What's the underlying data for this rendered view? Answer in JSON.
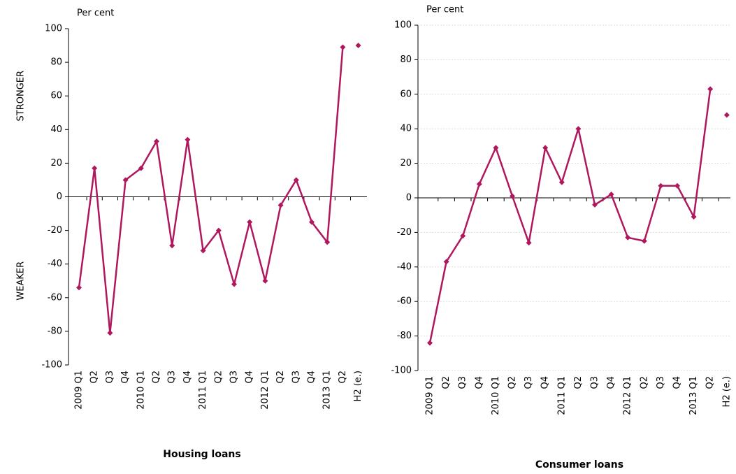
{
  "chart_data": [
    {
      "type": "line",
      "title": "Housing loans",
      "unit": "Per cent",
      "annotations": [
        "STRONGER",
        "WEAKER"
      ],
      "categories": [
        "2009 Q1",
        "Q2",
        "Q3",
        "Q4",
        "2010 Q1",
        "Q2",
        "Q3",
        "Q4",
        "2011 Q1",
        "Q2",
        "Q3",
        "Q4",
        "2012 Q1",
        "Q2",
        "Q3",
        "Q4",
        "2013 Q1",
        "Q2",
        "H2 (e.)"
      ],
      "series": [
        {
          "color": "#b0185e",
          "values": [
            -54,
            17,
            -81,
            10,
            17,
            33,
            -29,
            34,
            -32,
            -20,
            -52,
            -15,
            -50,
            -5,
            10,
            -15,
            -27,
            89,
            null
          ]
        },
        {
          "color": "#b0185e",
          "line": false,
          "values": [
            null,
            null,
            null,
            null,
            null,
            null,
            null,
            null,
            null,
            null,
            null,
            null,
            null,
            null,
            null,
            null,
            null,
            null,
            90
          ]
        }
      ],
      "ylim": [
        -100,
        100
      ],
      "yticks": [
        -100,
        -80,
        -60,
        -40,
        -20,
        0,
        20,
        40,
        60,
        80,
        100
      ],
      "grid": false
    },
    {
      "type": "line",
      "title": "Consumer loans",
      "unit": "Per cent",
      "categories": [
        "2009 Q1",
        "Q2",
        "Q3",
        "Q4",
        "2010 Q1",
        "Q2",
        "Q3",
        "Q4",
        "2011 Q1",
        "Q2",
        "Q3",
        "Q4",
        "2012 Q1",
        "Q2",
        "Q3",
        "Q4",
        "2013 Q1",
        "Q2",
        "H2 (e.)"
      ],
      "series": [
        {
          "color": "#b0185e",
          "values": [
            -84,
            -37,
            -22,
            8,
            29,
            1,
            -26,
            29,
            9,
            40,
            -4,
            2,
            -23,
            -25,
            7,
            7,
            -11,
            63,
            null
          ]
        },
        {
          "color": "#b0185e",
          "line": false,
          "values": [
            null,
            null,
            null,
            null,
            null,
            null,
            null,
            null,
            null,
            null,
            null,
            null,
            null,
            null,
            null,
            null,
            null,
            null,
            48
          ]
        }
      ],
      "ylim": [
        -100,
        100
      ],
      "yticks": [
        -100,
        -80,
        -60,
        -40,
        -20,
        0,
        20,
        40,
        60,
        80,
        100
      ],
      "grid": true
    }
  ]
}
